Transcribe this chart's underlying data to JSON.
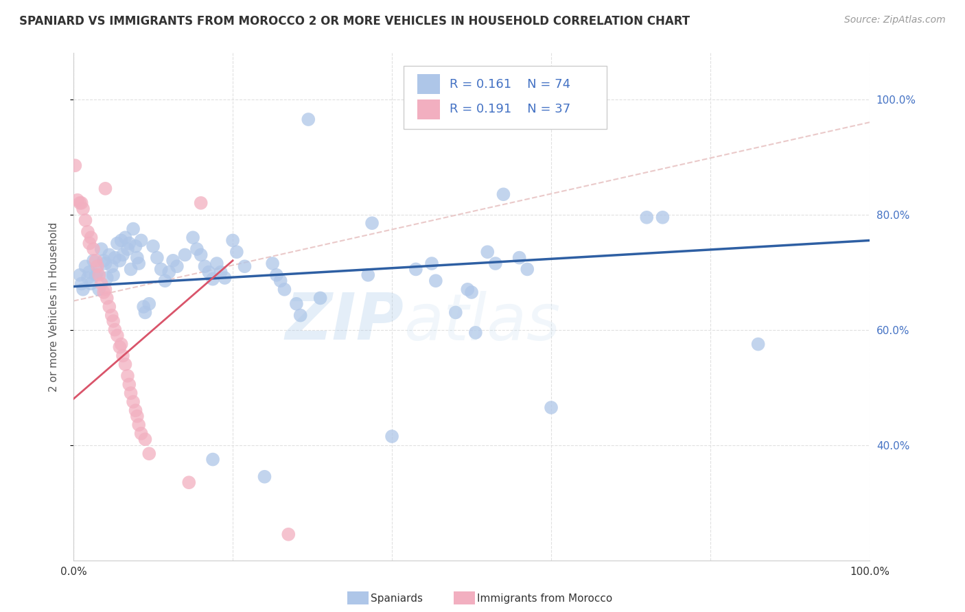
{
  "title": "SPANIARD VS IMMIGRANTS FROM MOROCCO 2 OR MORE VEHICLES IN HOUSEHOLD CORRELATION CHART",
  "source": "Source: ZipAtlas.com",
  "ylabel": "2 or more Vehicles in Household",
  "xlim": [
    0,
    1
  ],
  "ylim": [
    0.2,
    1.08
  ],
  "yticks": [
    0.4,
    0.6,
    0.8,
    1.0
  ],
  "ytick_labels": [
    "40.0%",
    "60.0%",
    "80.0%",
    "100.0%"
  ],
  "xticks": [
    0.0,
    0.2,
    0.4,
    0.6,
    0.8,
    1.0
  ],
  "xtick_labels": [
    "0.0%",
    "",
    "",
    "",
    "",
    "100.0%"
  ],
  "blue_color": "#aec6e8",
  "pink_color": "#f2afc0",
  "line_blue": "#2e5fa3",
  "line_pink": "#d9546a",
  "legend_text_color": "#4472c4",
  "blue_scatter": [
    [
      0.008,
      0.695
    ],
    [
      0.01,
      0.68
    ],
    [
      0.012,
      0.67
    ],
    [
      0.015,
      0.71
    ],
    [
      0.018,
      0.69
    ],
    [
      0.02,
      0.7
    ],
    [
      0.022,
      0.68
    ],
    [
      0.025,
      0.72
    ],
    [
      0.028,
      0.695
    ],
    [
      0.03,
      0.7
    ],
    [
      0.032,
      0.67
    ],
    [
      0.035,
      0.74
    ],
    [
      0.038,
      0.72
    ],
    [
      0.04,
      0.715
    ],
    [
      0.042,
      0.69
    ],
    [
      0.045,
      0.73
    ],
    [
      0.048,
      0.71
    ],
    [
      0.05,
      0.695
    ],
    [
      0.052,
      0.725
    ],
    [
      0.055,
      0.75
    ],
    [
      0.058,
      0.72
    ],
    [
      0.06,
      0.755
    ],
    [
      0.062,
      0.73
    ],
    [
      0.065,
      0.76
    ],
    [
      0.068,
      0.74
    ],
    [
      0.07,
      0.75
    ],
    [
      0.072,
      0.705
    ],
    [
      0.075,
      0.775
    ],
    [
      0.078,
      0.745
    ],
    [
      0.08,
      0.725
    ],
    [
      0.082,
      0.715
    ],
    [
      0.085,
      0.755
    ],
    [
      0.088,
      0.64
    ],
    [
      0.09,
      0.63
    ],
    [
      0.095,
      0.645
    ],
    [
      0.1,
      0.745
    ],
    [
      0.105,
      0.725
    ],
    [
      0.11,
      0.705
    ],
    [
      0.115,
      0.685
    ],
    [
      0.12,
      0.7
    ],
    [
      0.125,
      0.72
    ],
    [
      0.13,
      0.71
    ],
    [
      0.14,
      0.73
    ],
    [
      0.15,
      0.76
    ],
    [
      0.155,
      0.74
    ],
    [
      0.16,
      0.73
    ],
    [
      0.165,
      0.71
    ],
    [
      0.17,
      0.7
    ],
    [
      0.175,
      0.688
    ],
    [
      0.18,
      0.715
    ],
    [
      0.185,
      0.7
    ],
    [
      0.19,
      0.69
    ],
    [
      0.2,
      0.755
    ],
    [
      0.205,
      0.735
    ],
    [
      0.215,
      0.71
    ],
    [
      0.25,
      0.715
    ],
    [
      0.255,
      0.695
    ],
    [
      0.26,
      0.685
    ],
    [
      0.265,
      0.67
    ],
    [
      0.28,
      0.645
    ],
    [
      0.285,
      0.625
    ],
    [
      0.31,
      0.655
    ],
    [
      0.295,
      0.965
    ],
    [
      0.37,
      0.695
    ],
    [
      0.375,
      0.785
    ],
    [
      0.4,
      0.415
    ],
    [
      0.43,
      0.705
    ],
    [
      0.45,
      0.715
    ],
    [
      0.455,
      0.685
    ],
    [
      0.48,
      0.63
    ],
    [
      0.495,
      0.67
    ],
    [
      0.5,
      0.665
    ],
    [
      0.505,
      0.595
    ],
    [
      0.52,
      0.735
    ],
    [
      0.53,
      0.715
    ],
    [
      0.56,
      0.725
    ],
    [
      0.57,
      0.705
    ],
    [
      0.6,
      0.465
    ],
    [
      0.72,
      0.795
    ],
    [
      0.74,
      0.795
    ],
    [
      0.86,
      0.575
    ],
    [
      0.54,
      0.835
    ],
    [
      0.175,
      0.375
    ],
    [
      0.24,
      0.345
    ]
  ],
  "pink_scatter": [
    [
      0.002,
      0.885
    ],
    [
      0.005,
      0.825
    ],
    [
      0.008,
      0.82
    ],
    [
      0.01,
      0.82
    ],
    [
      0.012,
      0.81
    ],
    [
      0.015,
      0.79
    ],
    [
      0.018,
      0.77
    ],
    [
      0.02,
      0.75
    ],
    [
      0.022,
      0.76
    ],
    [
      0.025,
      0.74
    ],
    [
      0.028,
      0.72
    ],
    [
      0.03,
      0.71
    ],
    [
      0.032,
      0.695
    ],
    [
      0.035,
      0.68
    ],
    [
      0.038,
      0.665
    ],
    [
      0.04,
      0.67
    ],
    [
      0.042,
      0.655
    ],
    [
      0.045,
      0.64
    ],
    [
      0.048,
      0.625
    ],
    [
      0.05,
      0.615
    ],
    [
      0.052,
      0.6
    ],
    [
      0.055,
      0.59
    ],
    [
      0.058,
      0.57
    ],
    [
      0.06,
      0.575
    ],
    [
      0.062,
      0.555
    ],
    [
      0.065,
      0.54
    ],
    [
      0.068,
      0.52
    ],
    [
      0.07,
      0.505
    ],
    [
      0.072,
      0.49
    ],
    [
      0.075,
      0.475
    ],
    [
      0.078,
      0.46
    ],
    [
      0.08,
      0.45
    ],
    [
      0.082,
      0.435
    ],
    [
      0.085,
      0.42
    ],
    [
      0.09,
      0.41
    ],
    [
      0.095,
      0.385
    ],
    [
      0.04,
      0.845
    ],
    [
      0.145,
      0.335
    ],
    [
      0.16,
      0.82
    ],
    [
      0.27,
      0.245
    ]
  ],
  "blue_line": [
    0.0,
    1.0,
    0.675,
    0.755
  ],
  "pink_line": [
    0.0,
    0.2,
    0.48,
    0.72
  ],
  "dash_line": [
    0.0,
    0.65,
    1.0,
    0.96
  ],
  "background_color": "#ffffff",
  "grid_color": "#e0e0e0",
  "watermark_zip": "ZIP",
  "watermark_atlas": "atlas",
  "dashed_line_color": "#e8c4c4"
}
